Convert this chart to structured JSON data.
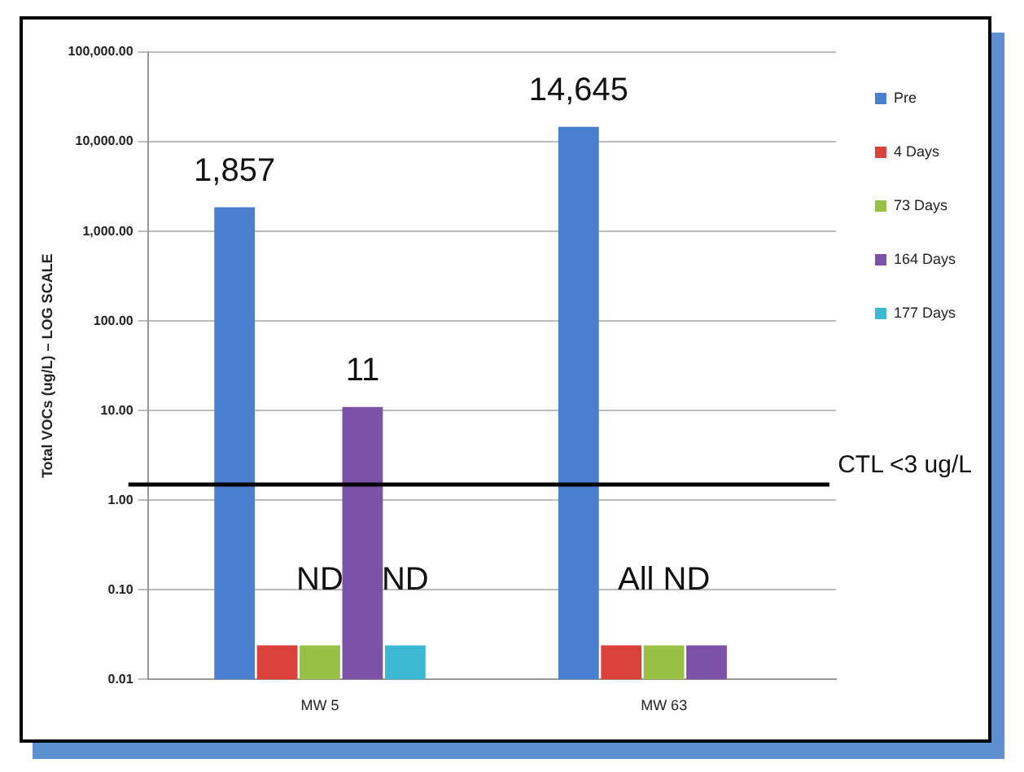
{
  "chart_data": {
    "type": "bar",
    "ylabel": "Total VOCs (ug/L) – LOG SCALE",
    "categories": [
      "MW 5",
      "MW 63"
    ],
    "log": "y",
    "ylim": [
      0.01,
      100000
    ],
    "yticks": [
      {
        "value": 0.01,
        "label": "0.01"
      },
      {
        "value": 0.1,
        "label": "0.10"
      },
      {
        "value": 1,
        "label": "1.00"
      },
      {
        "value": 10,
        "label": "10.00"
      },
      {
        "value": 100,
        "label": "100.00"
      },
      {
        "value": 1000,
        "label": "1,000.00"
      },
      {
        "value": 10000,
        "label": "10,000.00"
      },
      {
        "value": 100000,
        "label": "100,000.00"
      }
    ],
    "grid": "y",
    "legend": "right",
    "series": [
      {
        "name": "Pre",
        "color": "#4a7fd0",
        "values": [
          1857,
          14645
        ],
        "value_labels": [
          "1,857",
          "14,645"
        ]
      },
      {
        "name": "4 Days",
        "color": "#d9413a",
        "values": [
          0.024,
          0.024
        ],
        "value_labels": [
          null,
          null
        ]
      },
      {
        "name": "73 Days",
        "color": "#98c043",
        "values": [
          0.024,
          0.024
        ],
        "value_labels": [
          "ND",
          "All ND"
        ]
      },
      {
        "name": "164 Days",
        "color": "#7c52a8",
        "values": [
          11,
          0.024
        ],
        "value_labels": [
          "11",
          null
        ]
      },
      {
        "name": "177 Days",
        "color": "#3bb8d4",
        "values": [
          0.024,
          null
        ],
        "value_labels": [
          "ND",
          null
        ]
      }
    ],
    "ref_lines": [
      {
        "axis": "y",
        "value": 1.5,
        "label": "CTL <3 ug/L",
        "color": "#000000"
      }
    ]
  }
}
